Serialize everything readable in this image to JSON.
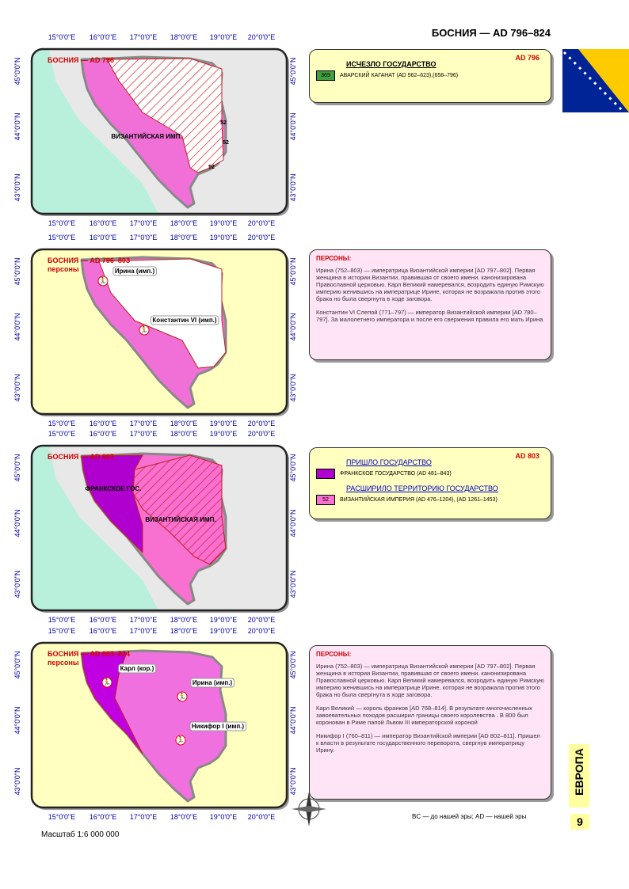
{
  "header": {
    "title": "БОСНИЯ — AD 796–824"
  },
  "lon_labels": [
    "15°0'0\"E",
    "16°0'0\"E",
    "17°0'0\"E",
    "18°0'0\"E",
    "19°0'0\"E",
    "20°0'0\"E"
  ],
  "lat_labels": [
    "45°0'0\"N",
    "44°0'0\"N",
    "43°0'0\"N"
  ],
  "maps": [
    {
      "title": "БОСНИЯ — AD 796",
      "labels": [
        "ВИЗАНТИЙСКАЯ ИМП.",
        "52",
        "52",
        "52"
      ]
    },
    {
      "title": "БОСНИЯ — AD 796–803",
      "subtitle": "персоны",
      "labels": [
        "Ирина (имп.)",
        "Константин VI (имп.)"
      ]
    },
    {
      "title": "БОСНИЯ — AD 803",
      "labels": [
        "ФРАНКСКОЕ ГОС.",
        "ВИЗАНТИЙСКАЯ ИМП."
      ]
    },
    {
      "title": "БОСНИЯ — AD 803–824",
      "subtitle": "персоны",
      "labels": [
        "Карл (кор.)",
        "Ирина (имп.)",
        "Никифор I (имп.)"
      ]
    }
  ],
  "panels": [
    {
      "date": "AD 796",
      "sections": [
        {
          "heading": "ИСЧЕЗЛО ГОСУДАРСТВО",
          "badge": "369",
          "item": "АВАРСКИЙ КАГАНАТ (AD 562–623),(658–796)"
        }
      ]
    },
    {
      "heading": "ПЕРСОНЫ:",
      "paragraphs": [
        "Ирина (752–803) — императрица Византийской империи [AD 797–802]. Первая женщина в истории Византии, правившая от своего имени. канонизирована Православной церковью. Карл Великий намеревался, возродить единую Римскую империю женившись на императрице Ирине, которая не возражала против этого брака но была свергнута в ходе заговора.",
        "Константин VI Слепой (771–797) — император Византийской империи [AD 780–797]. За малолетнего императора и после его свержения правила его мать Ирина"
      ]
    },
    {
      "date": "AD 803",
      "sections": [
        {
          "heading": "ПРИШЛО ГОСУДАРСТВО",
          "item": "ФРАНКСКОЕ ГОСУДАРСТВО (AD 481–843)"
        },
        {
          "heading": "РАСШИРИЛО ТЕРРИТОРИЮ ГОСУДАРСТВО",
          "badge": "52",
          "item": "ВИЗАНТИЙСКАЯ ИМПЕРИЯ (AD 476–1204), (AD 1261–1453)"
        }
      ]
    },
    {
      "heading": "ПЕРСОНЫ:",
      "paragraphs": [
        "Ирина (752–803) — императрица Византийской империи [AD 797–802]. Первая женщина в истории Византии, правившая от своего имени. канонизирована Православной церковью. Карл Великий намеревался, возродить единую Римскую империю женившись на императрице Ирине, которая не возражала против этого брака но была свергнута в ходе заговора.",
        "Карл Великий — король франков [AD 768–814]. В результате многочисленных завоевательных походов расширил границы своего королевства . В 800 был коронован в Риме папой Львом III императорской короной",
        "Никифор I (760–811) — император Византийской империи [AD 802–811]. Пришел к власти в результате государственного переворота, свергнув императрицу Ирину."
      ]
    }
  ],
  "footer": {
    "legend": "BC — до нашей эры; AD — нашей эры",
    "scale": "Масштаб 1:6 000 000",
    "side": "ЕВРОПА",
    "page": "9"
  }
}
